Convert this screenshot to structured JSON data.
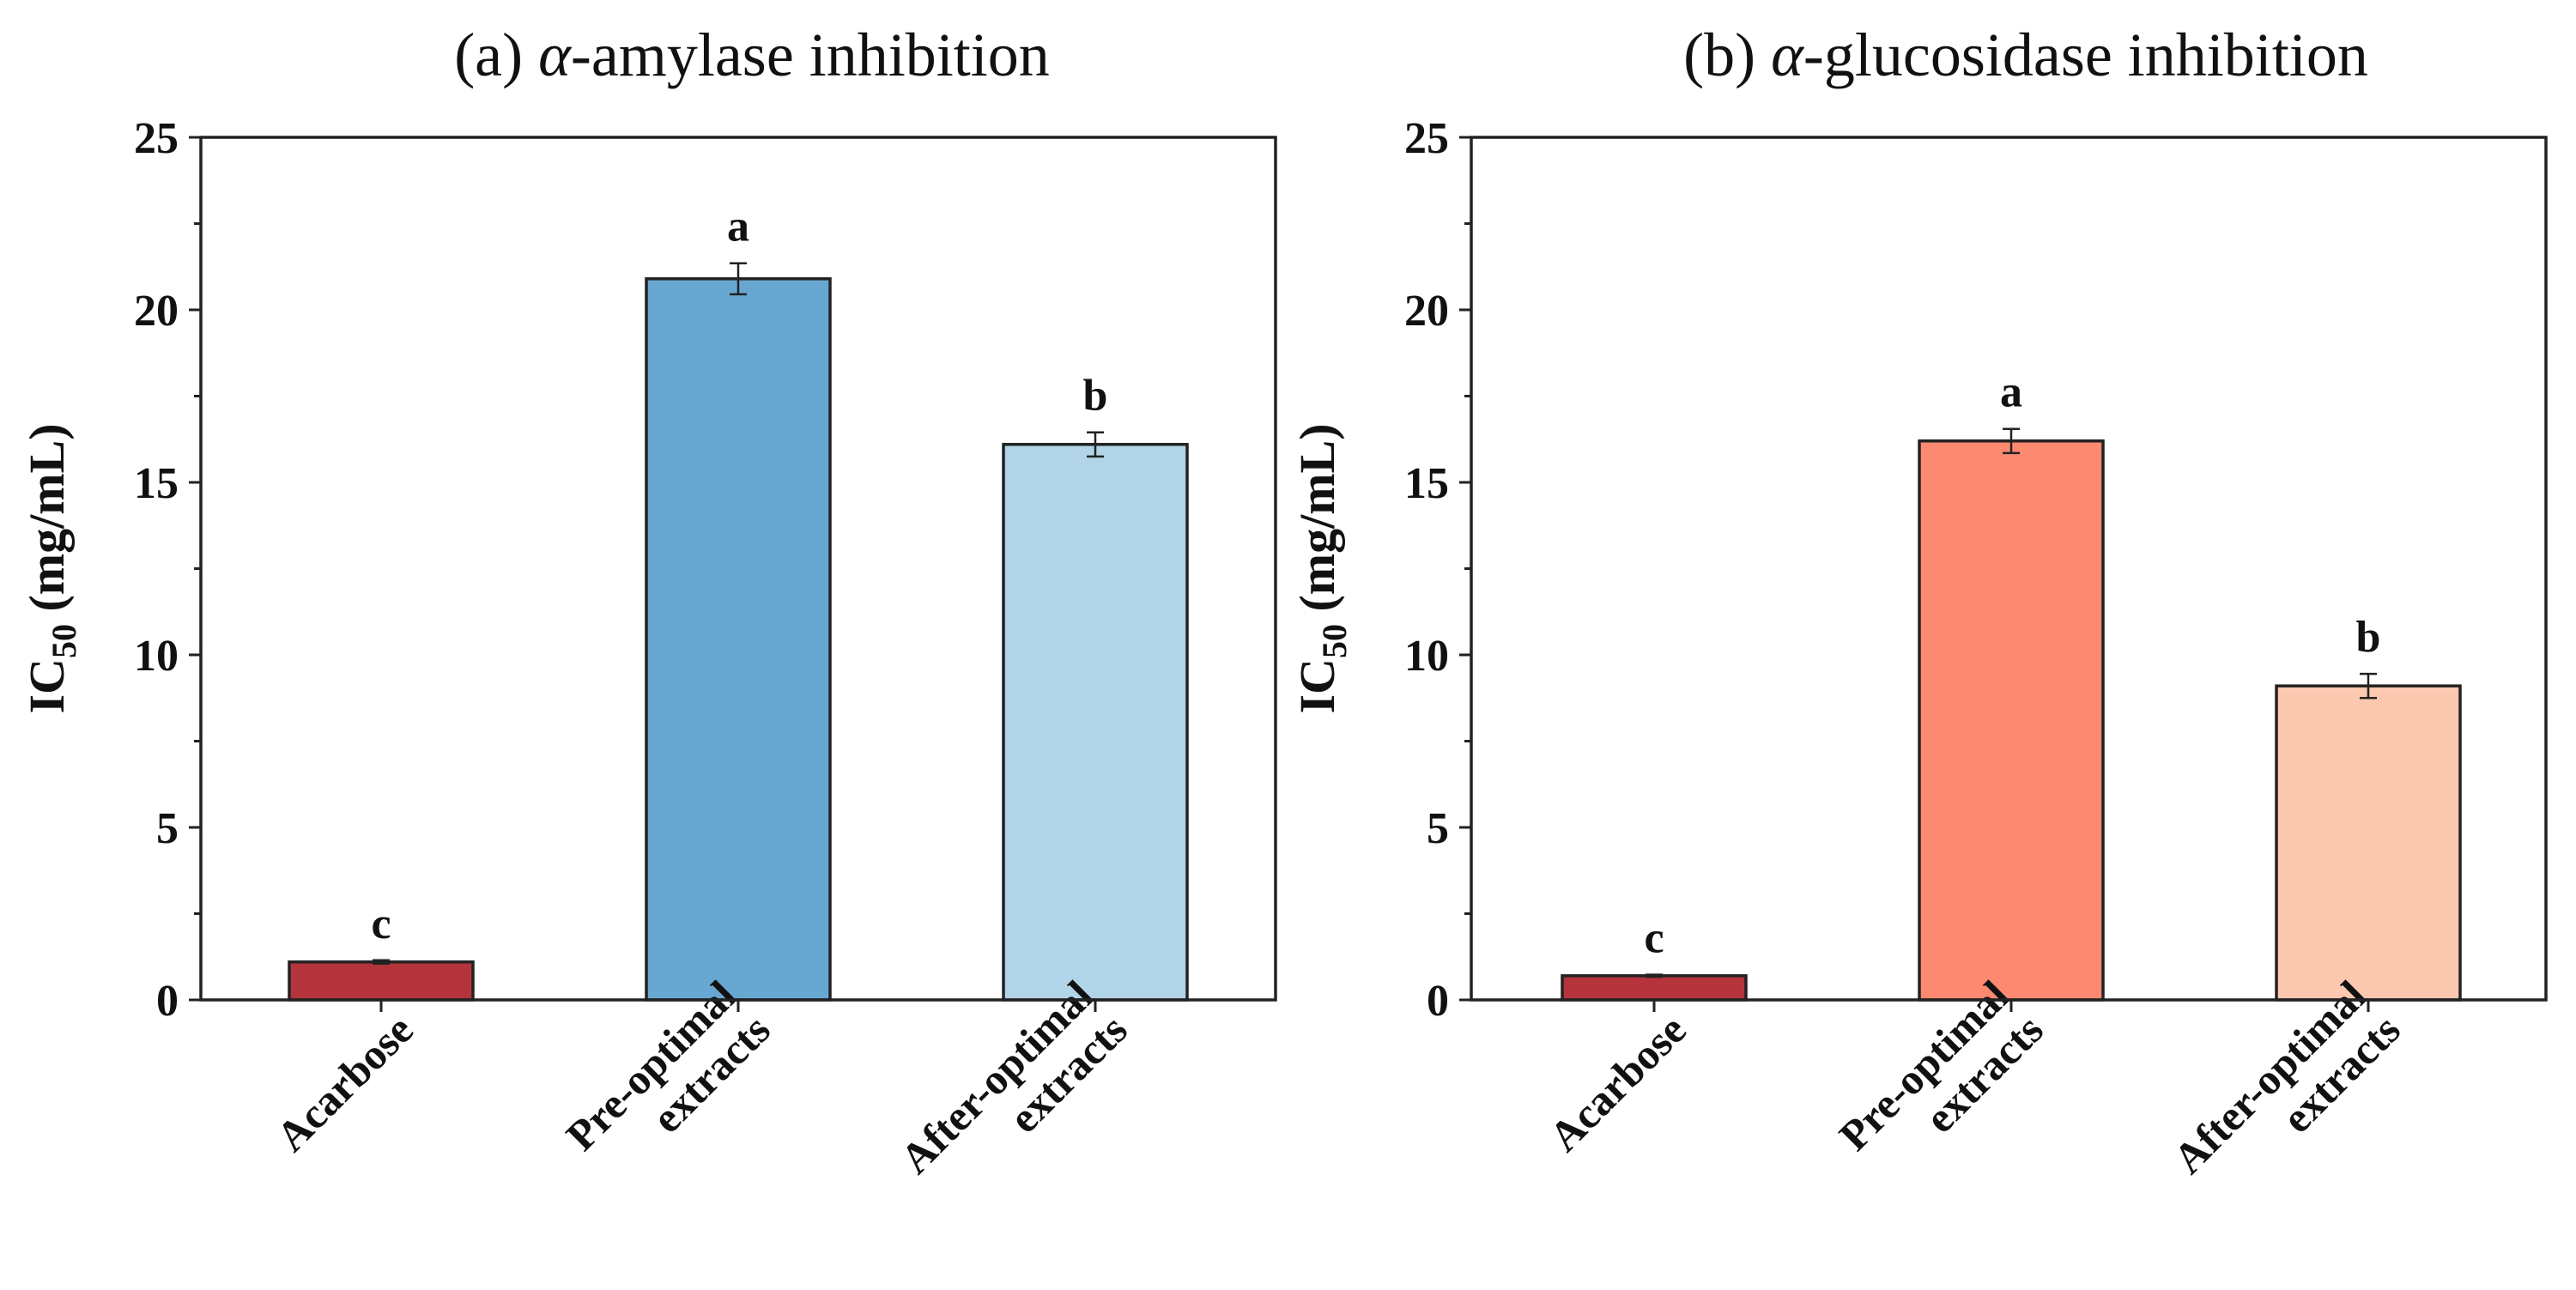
{
  "chart_data": [
    {
      "type": "bar",
      "title_prefix": "(a) ",
      "title_alpha": "α",
      "title_rest": "-amylase inhibition",
      "ylabel_main": "IC",
      "ylabel_sub": "50",
      "ylabel_unit": " (mg/mL)",
      "ylim": [
        0,
        25
      ],
      "yticks": [
        0,
        5,
        10,
        15,
        20,
        25
      ],
      "categories": [
        [
          "Acarbose"
        ],
        [
          "Pre-optimal",
          "extracts"
        ],
        [
          "After-optimal",
          "extracts"
        ]
      ],
      "values": [
        1.1,
        20.9,
        16.1
      ],
      "errors": [
        0.05,
        0.45,
        0.35
      ],
      "letters": [
        "c",
        "a",
        "b"
      ],
      "colors": [
        "#b5343c",
        "#68a7d1",
        "#b1d4e8"
      ],
      "grid": false
    },
    {
      "type": "bar",
      "title_prefix": "(b) ",
      "title_alpha": "α",
      "title_rest": "-glucosidase inhibition",
      "ylabel_main": "IC",
      "ylabel_sub": "50",
      "ylabel_unit": " (mg/mL)",
      "ylim": [
        0,
        25
      ],
      "yticks": [
        0,
        5,
        10,
        15,
        20,
        25
      ],
      "categories": [
        [
          "Acarbose"
        ],
        [
          "Pre-optimal",
          "extracts"
        ],
        [
          "After-optimal",
          "extracts"
        ]
      ],
      "values": [
        0.7,
        16.2,
        9.1
      ],
      "errors": [
        0.03,
        0.35,
        0.35
      ],
      "letters": [
        "c",
        "a",
        "b"
      ],
      "colors": [
        "#b5343c",
        "#fc8970",
        "#fcc8b0"
      ],
      "grid": false
    }
  ]
}
